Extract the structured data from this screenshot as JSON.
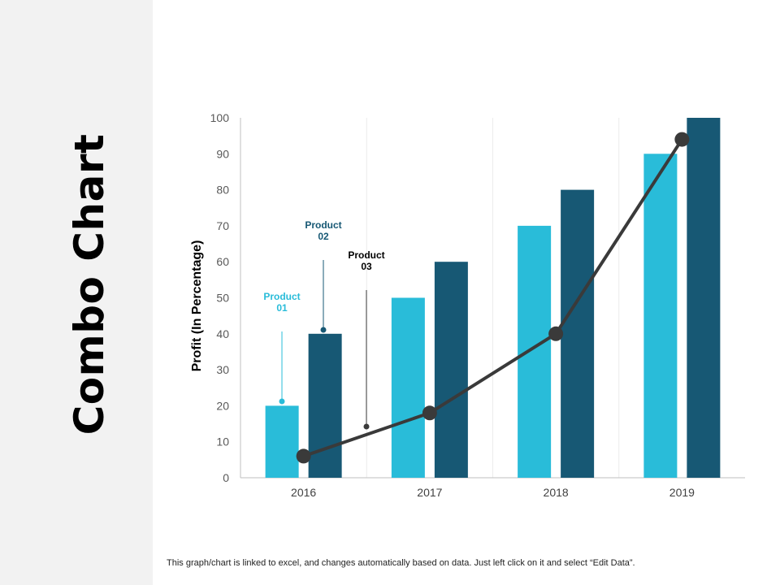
{
  "side_title": "Combo Chart",
  "footer_note": "This graph/chart is linked to excel, and changes automatically based on data. Just left click on it and select “Edit Data”.",
  "colors": {
    "product01": "#29bcd9",
    "product02": "#175874",
    "product03": "#3a3a3a",
    "panel": "#f2f2f2"
  },
  "chart_data": {
    "type": "bar",
    "title": "",
    "xlabel": "",
    "ylabel": "Profit (In Percentage)",
    "ylim": [
      0,
      100
    ],
    "yticks": [
      0,
      10,
      20,
      30,
      40,
      50,
      60,
      70,
      80,
      90,
      100
    ],
    "categories": [
      "2016",
      "2017",
      "2018",
      "2019"
    ],
    "grid": "vertical lines between categories",
    "series": [
      {
        "name": "Product 01",
        "label_lines": [
          "Product",
          "01"
        ],
        "kind": "bar",
        "values": [
          20,
          50,
          70,
          90
        ]
      },
      {
        "name": "Product 02",
        "label_lines": [
          "Product",
          "02"
        ],
        "kind": "bar",
        "values": [
          40,
          60,
          80,
          100
        ]
      },
      {
        "name": "Product 03",
        "label_lines": [
          "Product",
          "03"
        ],
        "kind": "line",
        "values": [
          6,
          18,
          40,
          94
        ]
      }
    ]
  }
}
